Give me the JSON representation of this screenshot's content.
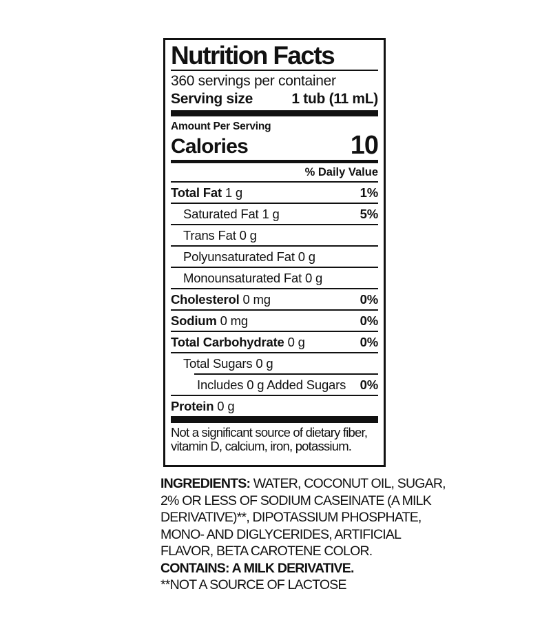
{
  "colors": {
    "ink": "#111111",
    "background": "#ffffff"
  },
  "nutrition_label": {
    "title": "Nutrition Facts",
    "servings_per_container": "360 servings per container",
    "serving_size_label": "Serving size",
    "serving_size_value": "1 tub (11 mL)",
    "amount_per_serving": "Amount Per Serving",
    "calories_label": "Calories",
    "calories_value": "10",
    "daily_value_header": "% Daily Value",
    "rows": [
      {
        "name": "Total Fat",
        "amount": "1 g",
        "dv": "1%"
      },
      {
        "name": "Saturated Fat",
        "amount": "1 g",
        "dv": "5%"
      },
      {
        "name": "Trans Fat",
        "amount": "0 g",
        "dv": ""
      },
      {
        "name": "Polyunsaturated Fat",
        "amount": "0 g",
        "dv": ""
      },
      {
        "name": "Monounsaturated Fat",
        "amount": "0 g",
        "dv": ""
      },
      {
        "name": "Cholesterol",
        "amount": "0 mg",
        "dv": "0%"
      },
      {
        "name": "Sodium",
        "amount": "0 mg",
        "dv": "0%"
      },
      {
        "name": "Total Carbohydrate",
        "amount": "0 g",
        "dv": "0%"
      },
      {
        "name": "Total Sugars",
        "amount": "0 g",
        "dv": ""
      },
      {
        "name": "Includes 0 g Added Sugars",
        "amount": "",
        "dv": "0%"
      },
      {
        "name": "Protein",
        "amount": "0 g",
        "dv": ""
      }
    ],
    "footnote_line1": "Not a significant source of dietary fiber,",
    "footnote_line2": "vitamin D, calcium, iron, potassium."
  },
  "ingredients": {
    "heading": "INGREDIENTS:",
    "line1_rest": " WATER, COCONUT OIL, SUGAR,",
    "line2": "2% OR LESS OF SODIUM CASEINATE (A MILK",
    "line3": "DERIVATIVE)**, DIPOTASSIUM PHOSPHATE,",
    "line4": "MONO- AND DIGLYCERIDES, ARTIFICIAL",
    "line5": "FLAVOR, BETA CAROTENE COLOR.",
    "contains": "CONTAINS: A MILK DERIVATIVE.",
    "lactose_note": "**NOT A SOURCE OF LACTOSE"
  }
}
